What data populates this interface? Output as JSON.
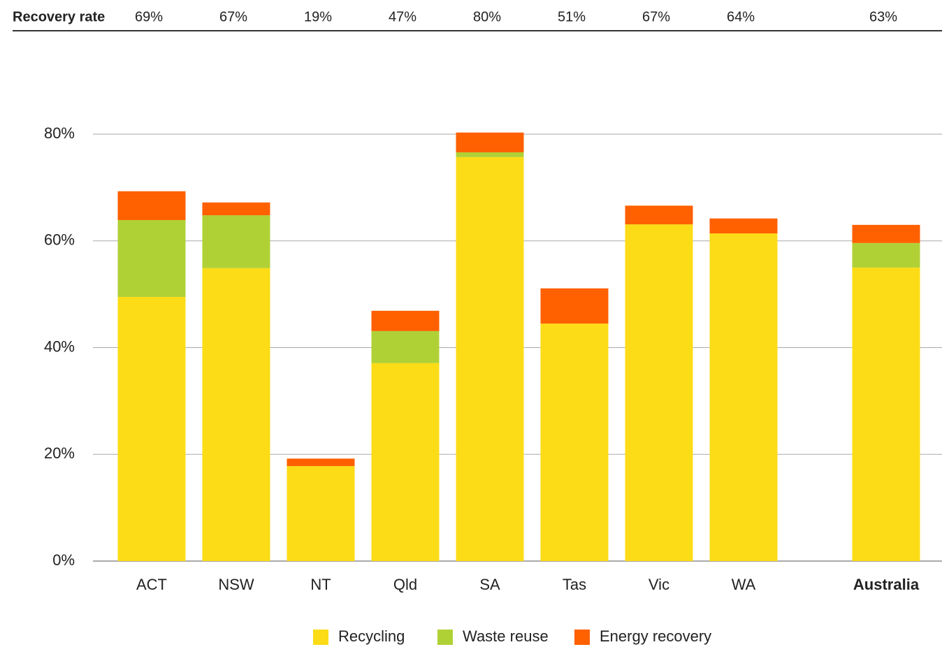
{
  "chart_data": {
    "type": "stacked_bar",
    "header_row": {
      "label": "Recovery rate",
      "values": [
        "69%",
        "67%",
        "19%",
        "47%",
        "80%",
        "51%",
        "67%",
        "64%",
        "63%"
      ]
    },
    "categories": [
      "ACT",
      "NSW",
      "NT",
      "Qld",
      "SA",
      "Tas",
      "Vic",
      "WA",
      "Australia"
    ],
    "series": [
      {
        "name": "Recycling",
        "color": "#fcdc17",
        "values": [
          49.5,
          54.9,
          17.8,
          37.1,
          75.7,
          44.5,
          63.1,
          61.4,
          55.0
        ]
      },
      {
        "name": "Waste reuse",
        "color": "#b0d136",
        "values": [
          14.4,
          9.9,
          0,
          6.0,
          0.9,
          0,
          0,
          0,
          4.6
        ]
      },
      {
        "name": "Energy recovery",
        "color": "#ff6000",
        "values": [
          5.4,
          2.4,
          1.4,
          3.8,
          3.7,
          6.6,
          3.5,
          2.8,
          3.4
        ]
      }
    ],
    "ylim": [
      0,
      80
    ],
    "yticks": [
      {
        "value": 0,
        "label": "0%"
      },
      {
        "value": 20,
        "label": "20%"
      },
      {
        "value": 40,
        "label": "40%"
      },
      {
        "value": 60,
        "label": "60%"
      },
      {
        "value": 80,
        "label": "80%"
      }
    ],
    "grid": true
  }
}
